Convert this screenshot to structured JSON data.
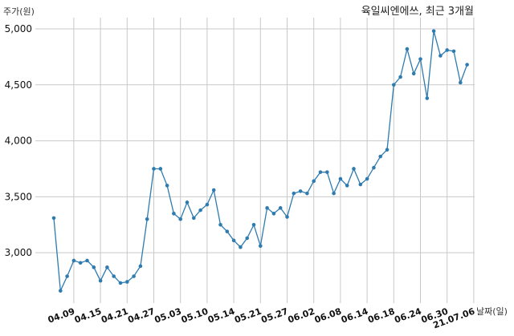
{
  "chart_data": {
    "type": "line",
    "title": "육일씨엔에쓰, 최근 3개월",
    "ylabel": "주가(원)",
    "xlabel": "날짜(일)",
    "ylim": [
      2550,
      5100
    ],
    "yticks": [
      3000,
      3500,
      4000,
      4500,
      5000
    ],
    "ytick_labels": [
      "3,000",
      "3,500",
      "4,000",
      "4,500",
      "5,000"
    ],
    "xtick_labels": [
      "04.09",
      "04.15",
      "04.21",
      "04.27",
      "05.03",
      "05.10",
      "05.14",
      "05.21",
      "05.27",
      "06.02",
      "06.08",
      "06.14",
      "06.18",
      "06.24",
      "06.30",
      "21.07.06"
    ],
    "xtick_index": [
      3,
      7,
      11,
      15,
      19,
      23,
      27,
      31,
      35,
      39,
      43,
      47,
      51,
      55,
      59,
      63
    ],
    "grid": true,
    "color": "#2e7bb0",
    "series": [
      {
        "values": [
          3310,
          2660,
          2790,
          2930,
          2910,
          2930,
          2870,
          2750,
          2870,
          2790,
          2730,
          2740,
          2790,
          2880,
          3300,
          3750,
          3750,
          3600,
          3350,
          3300,
          3450,
          3310,
          3380,
          3430,
          3560,
          3250,
          3190,
          3110,
          3050,
          3130,
          3250,
          3060,
          3400,
          3350,
          3400,
          3320,
          3530,
          3550,
          3530,
          3640,
          3720,
          3720,
          3530,
          3660,
          3600,
          3750,
          3610,
          3660,
          3760,
          3860,
          3920,
          4500,
          4570,
          4820,
          4600,
          4730,
          4380,
          4980,
          4760,
          4810,
          4800,
          4520,
          4680
        ]
      }
    ]
  }
}
